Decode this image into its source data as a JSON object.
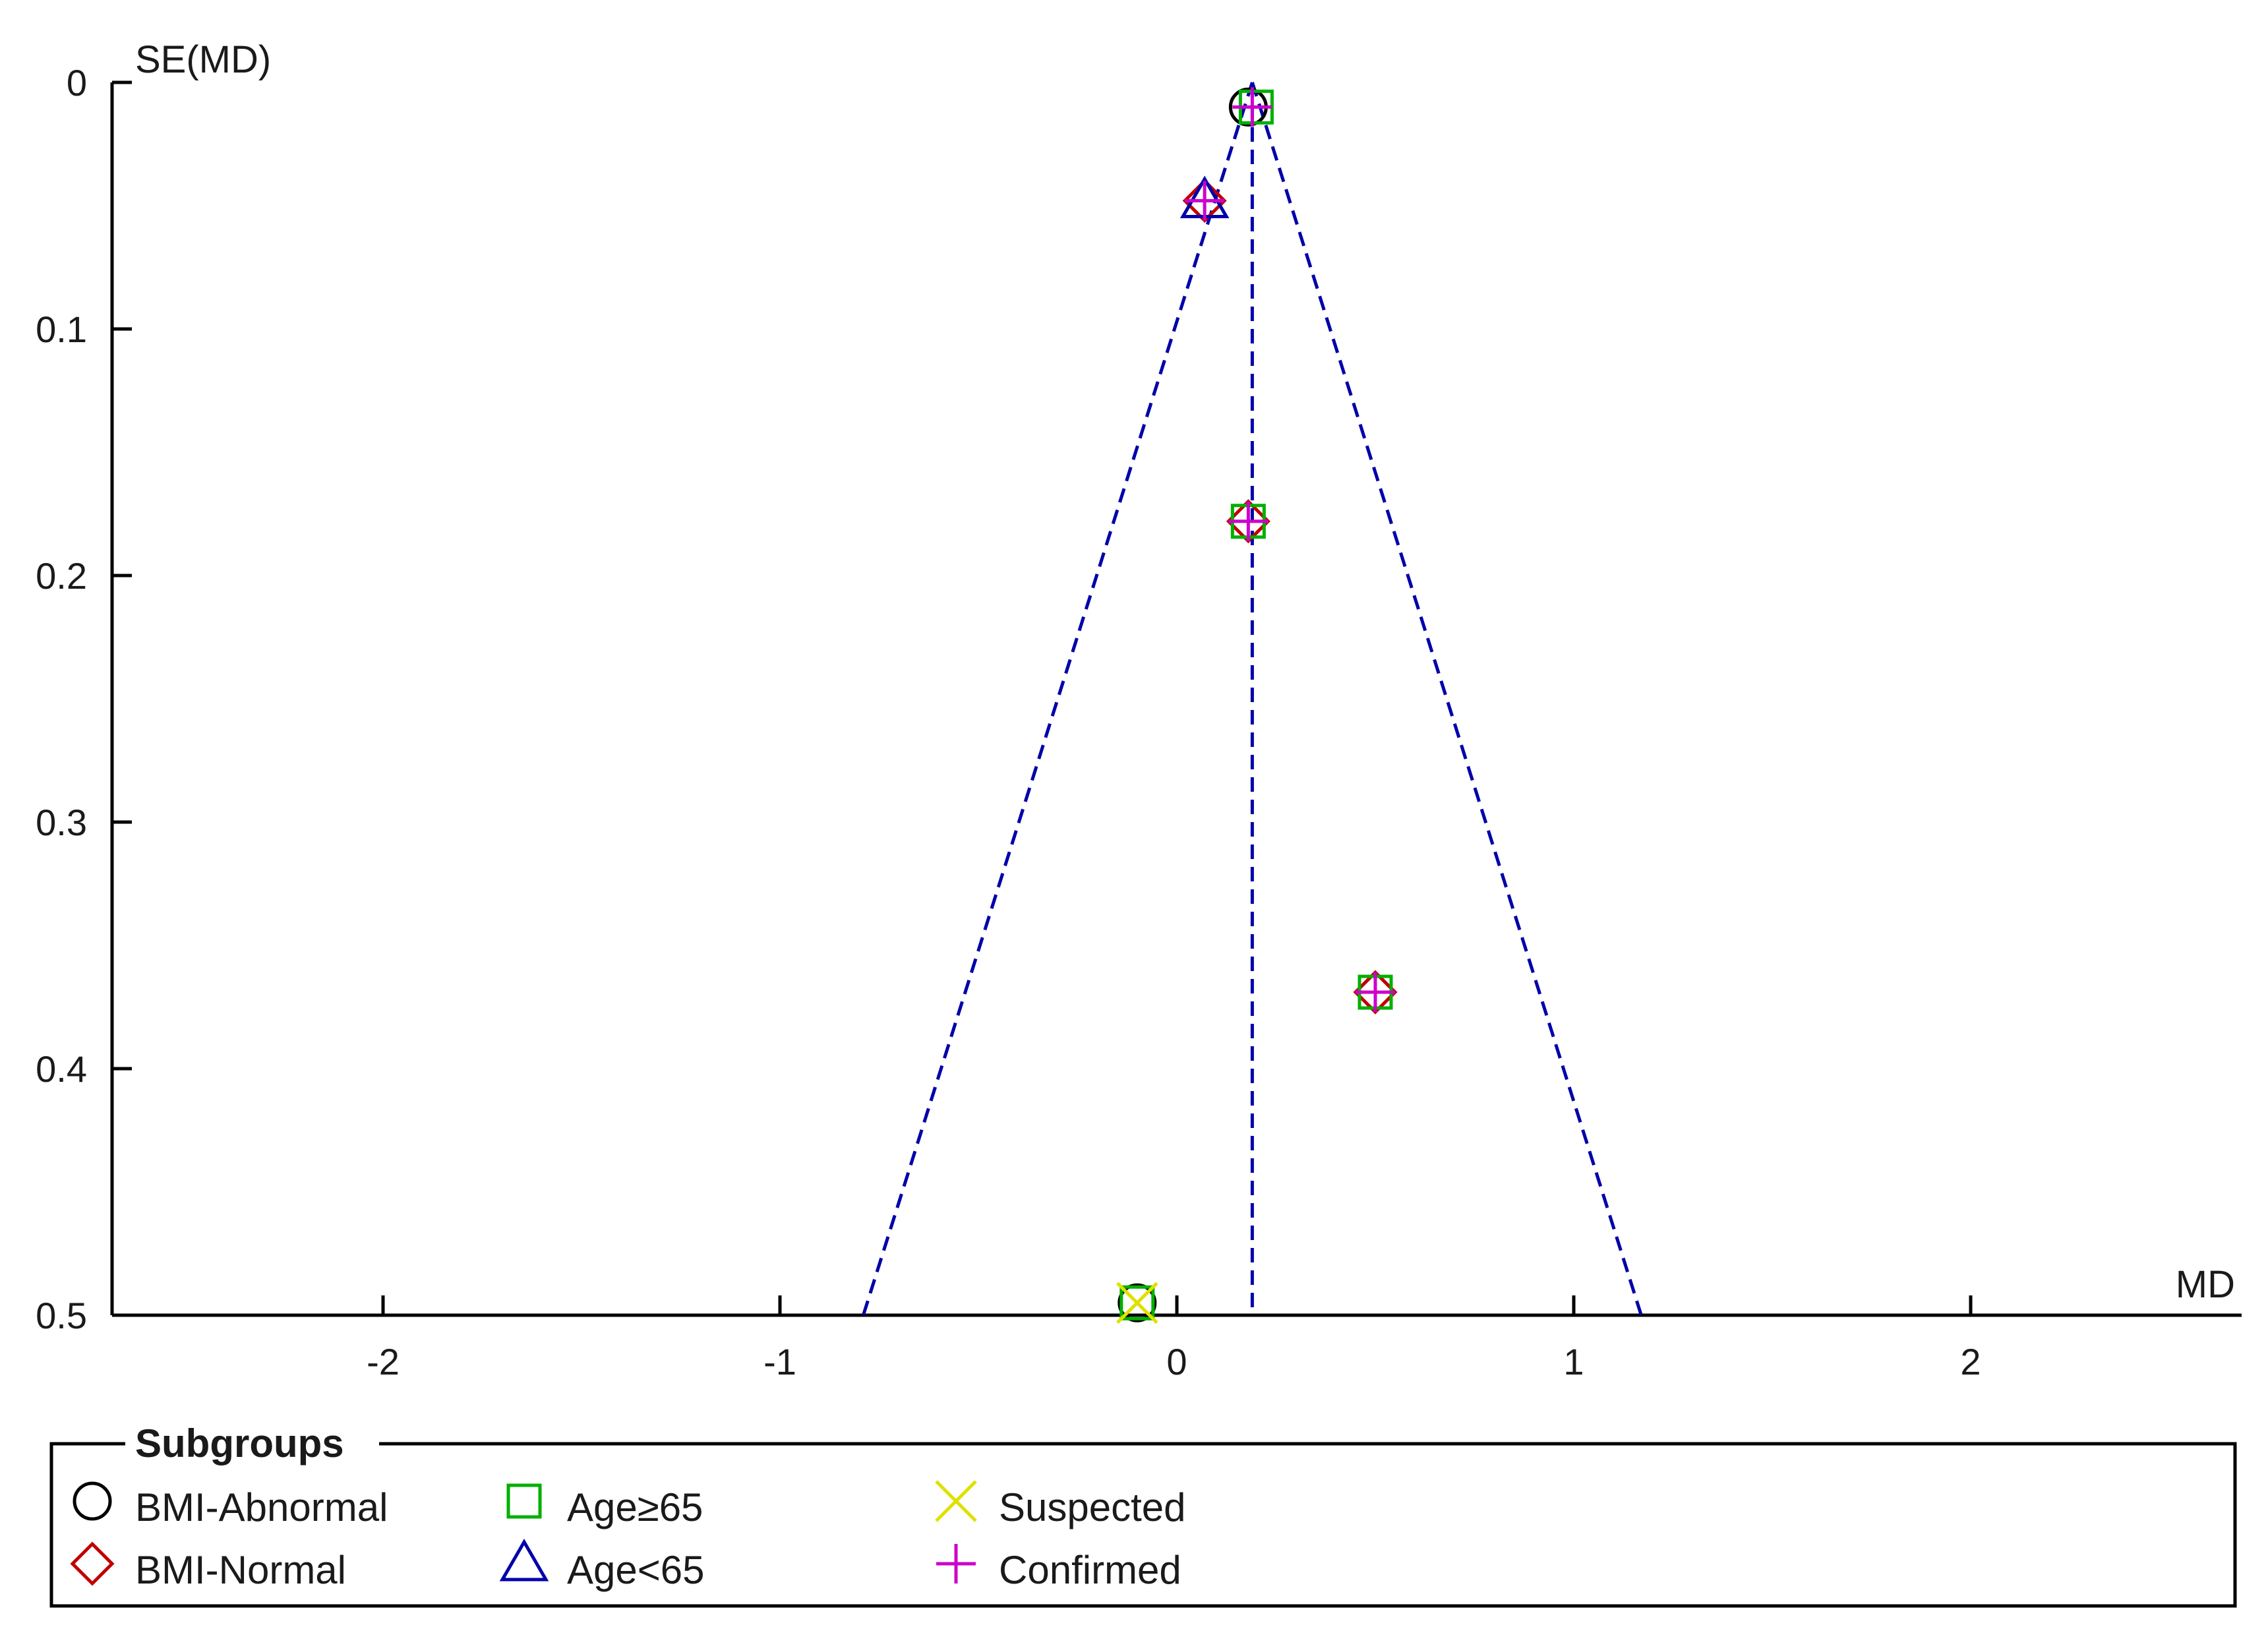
{
  "chart_data": {
    "type": "scatter",
    "subtype": "funnel plot",
    "xlabel": "MD",
    "ylabel": "SE(MD)",
    "xlim": [
      -2.7,
      2.7
    ],
    "ylim": [
      0,
      0.5
    ],
    "y_reversed": true,
    "x_ticks": [
      -2,
      -1,
      0,
      1,
      2
    ],
    "x_tick_labels": [
      "-2",
      "-1",
      "0",
      "1",
      "2"
    ],
    "y_ticks": [
      0,
      0.1,
      0.2,
      0.3,
      0.4,
      0.5
    ],
    "y_tick_labels": [
      "0",
      "0.1",
      "0.2",
      "0.3",
      "0.4",
      "0.5"
    ],
    "grid": false,
    "pooled_estimate": 0.19,
    "funnel": {
      "apex": [
        0.19,
        0
      ],
      "base_left": [
        -0.79,
        0.5
      ],
      "base_right": [
        1.17,
        0.5
      ],
      "color": "#0000aa",
      "style": "dashed"
    },
    "legend": {
      "title": "Subgroups",
      "placement": "bottom",
      "entries": [
        {
          "label": "BMI-Abnormal",
          "marker": "circle",
          "color": "#000000"
        },
        {
          "label": "BMI-Normal",
          "marker": "diamond",
          "color": "#c00000"
        },
        {
          "label": "Age≥65",
          "marker": "square",
          "color": "#00b000"
        },
        {
          "label": "Age<65",
          "marker": "triangle",
          "color": "#0000aa"
        },
        {
          "label": "Suspected",
          "marker": "x",
          "color": "#e0e000"
        },
        {
          "label": "Confirmed",
          "marker": "plus",
          "color": "#cc00cc"
        }
      ]
    },
    "series": [
      {
        "name": "BMI-Abnormal",
        "marker": "circle",
        "color": "#000000",
        "points": [
          {
            "x": 0.18,
            "y": 0.01
          },
          {
            "x": -0.1,
            "y": 0.495
          }
        ]
      },
      {
        "name": "BMI-Normal",
        "marker": "diamond",
        "color": "#c00000",
        "points": [
          {
            "x": 0.07,
            "y": 0.048
          },
          {
            "x": 0.18,
            "y": 0.178
          },
          {
            "x": 0.5,
            "y": 0.369
          }
        ]
      },
      {
        "name": "Age≥65",
        "marker": "square",
        "color": "#00b000",
        "points": [
          {
            "x": 0.2,
            "y": 0.01
          },
          {
            "x": 0.18,
            "y": 0.178
          },
          {
            "x": 0.5,
            "y": 0.369
          },
          {
            "x": -0.1,
            "y": 0.495
          }
        ]
      },
      {
        "name": "Age<65",
        "marker": "triangle",
        "color": "#0000aa",
        "points": [
          {
            "x": 0.07,
            "y": 0.048
          }
        ]
      },
      {
        "name": "Suspected",
        "marker": "x",
        "color": "#e0e000",
        "points": [
          {
            "x": -0.1,
            "y": 0.495
          }
        ]
      },
      {
        "name": "Confirmed",
        "marker": "plus",
        "color": "#cc00cc",
        "points": [
          {
            "x": 0.19,
            "y": 0.01
          },
          {
            "x": 0.07,
            "y": 0.048
          },
          {
            "x": 0.18,
            "y": 0.178
          },
          {
            "x": 0.5,
            "y": 0.369
          }
        ]
      }
    ]
  }
}
